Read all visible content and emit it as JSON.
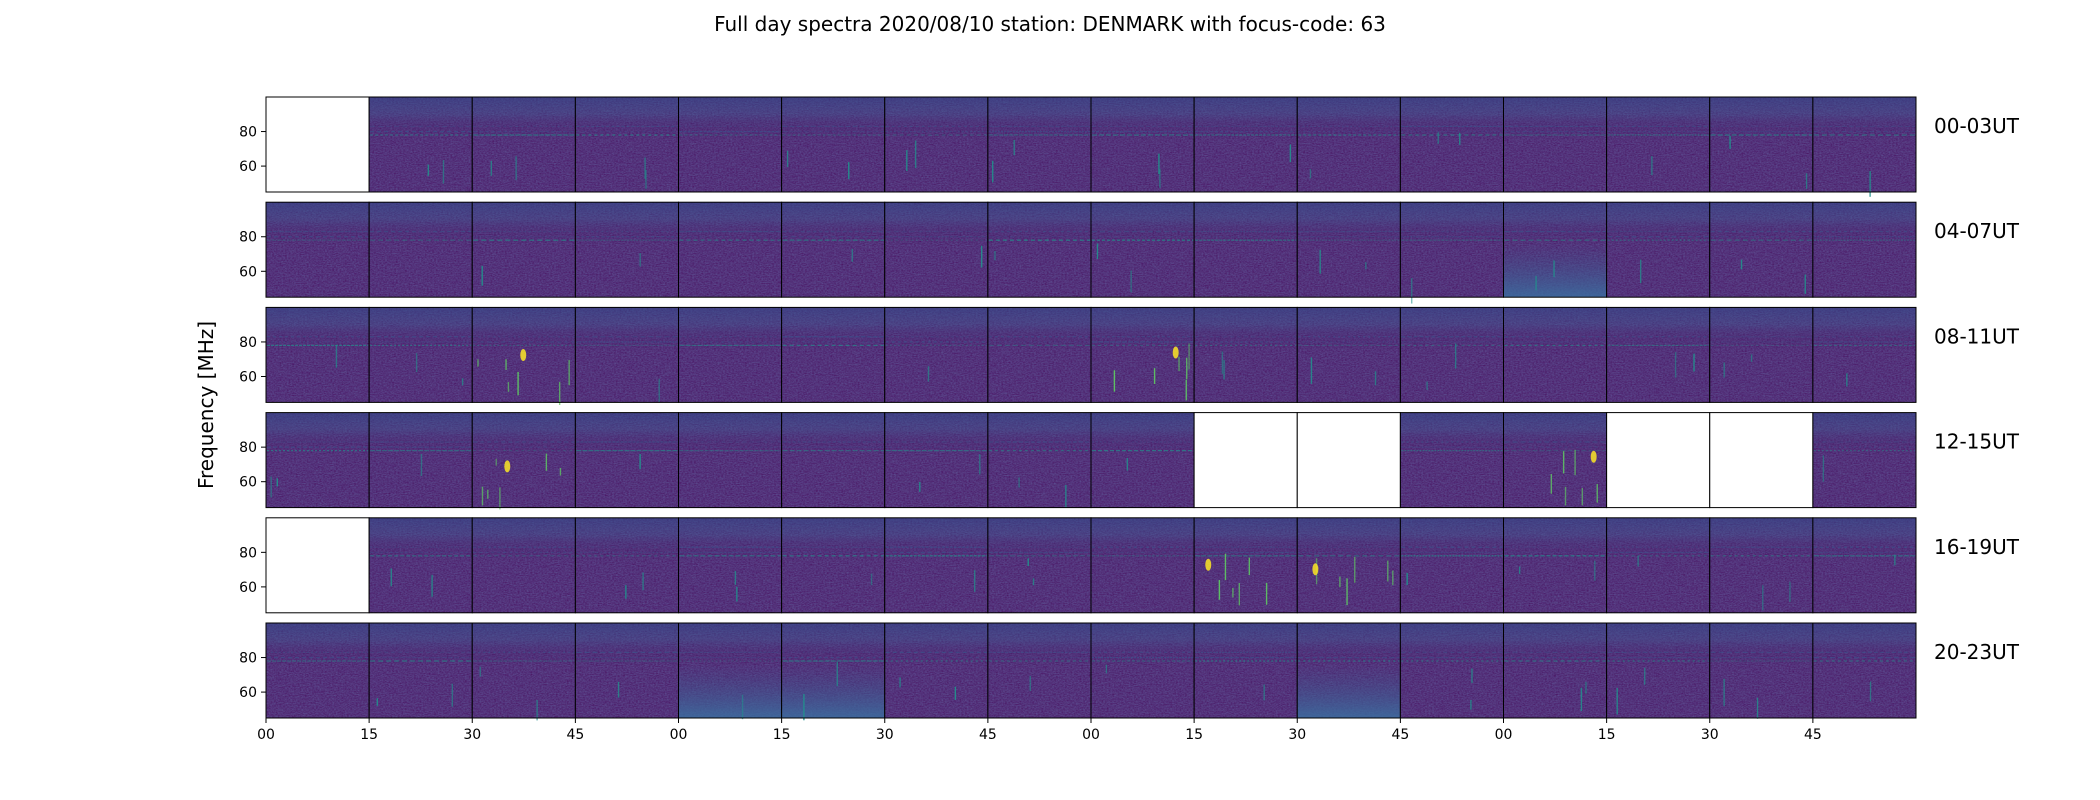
{
  "chart_data": {
    "type": "heatmap",
    "title": "Full day spectra 2020/08/10 station: DENMARK with focus-code: 63",
    "ylabel": "Frequency [MHz]",
    "xlabel": "",
    "yticks": [
      "60",
      "80"
    ],
    "ylim": [
      45,
      100
    ],
    "xticks": [
      "00",
      "15",
      "30",
      "45",
      "00",
      "15",
      "30",
      "45",
      "00",
      "15",
      "30",
      "45",
      "00",
      "15",
      "30",
      "45"
    ],
    "rows": [
      {
        "label": "00-03UT",
        "empty": [
          0
        ],
        "brightband": [],
        "features": []
      },
      {
        "label": "04-07UT",
        "empty": [],
        "brightband": [
          12
        ],
        "features": []
      },
      {
        "label": "08-11UT",
        "empty": [],
        "brightband": [],
        "features": [
          2,
          8
        ]
      },
      {
        "label": "12-15UT",
        "empty": [
          9,
          10,
          13,
          14
        ],
        "brightband": [],
        "features": [
          2,
          12
        ]
      },
      {
        "label": "16-19UT",
        "empty": [
          0
        ],
        "brightband": [],
        "features": [
          9,
          10
        ]
      },
      {
        "label": "20-23UT",
        "empty": [],
        "brightband": [
          4,
          5,
          10
        ],
        "features": []
      }
    ],
    "panels_per_row": 16,
    "colormap": [
      "#440154",
      "#3b528b",
      "#21918c",
      "#5ec962",
      "#fde725"
    ],
    "grid": false,
    "legend": "none"
  }
}
